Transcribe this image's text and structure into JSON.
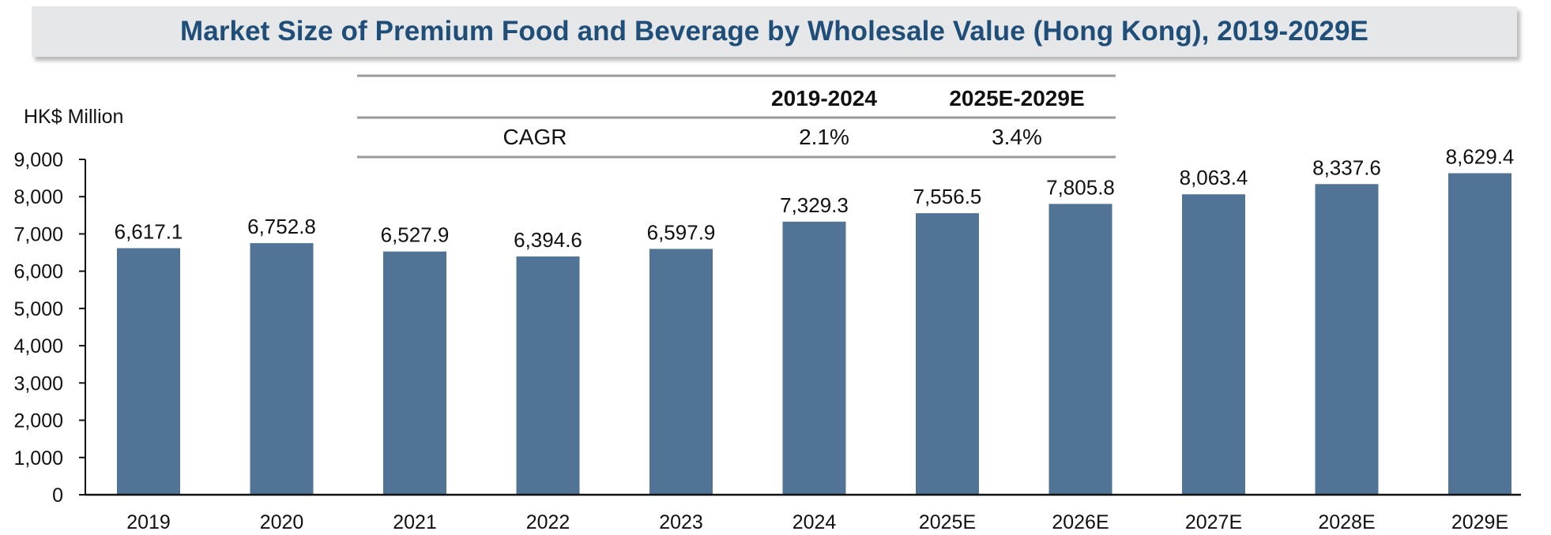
{
  "chart_data": {
    "type": "bar",
    "title": "Market Size of Premium Food and Beverage by Wholesale Value (Hong Kong), 2019-2029E",
    "ylabel": "HK$ Million",
    "xlabel": "",
    "ylim": [
      0,
      9000
    ],
    "yticks": [
      0,
      1000,
      2000,
      3000,
      4000,
      5000,
      6000,
      7000,
      8000,
      9000
    ],
    "ytick_labels": [
      "0",
      "1,000",
      "2,000",
      "3,000",
      "4,000",
      "5,000",
      "6,000",
      "7,000",
      "8,000",
      "9,000"
    ],
    "categories": [
      "2019",
      "2020",
      "2021",
      "2022",
      "2023",
      "2024",
      "2025E",
      "2026E",
      "2027E",
      "2028E",
      "2029E"
    ],
    "values": [
      6617.1,
      6752.8,
      6527.9,
      6394.6,
      6597.9,
      7329.3,
      7556.5,
      7805.8,
      8063.4,
      8337.6,
      8629.4
    ],
    "value_labels": [
      "6,617.1",
      "6,752.8",
      "6,527.9",
      "6,394.6",
      "6,597.9",
      "7,329.3",
      "7,556.5",
      "7,805.8",
      "8,063.4",
      "8,337.6",
      "8,629.4"
    ],
    "bar_color": "#517396",
    "grid": false,
    "legend": "none",
    "cagr_table": {
      "row_label": "CAGR",
      "headers": [
        "2019-2024",
        "2025E-2029E"
      ],
      "values": [
        "2.1%",
        "3.4%"
      ]
    }
  },
  "colors": {
    "title_text": "#1f4e79",
    "title_background": "#e6e7e9",
    "bar": "#517396",
    "rule": "#9a9a9a"
  }
}
